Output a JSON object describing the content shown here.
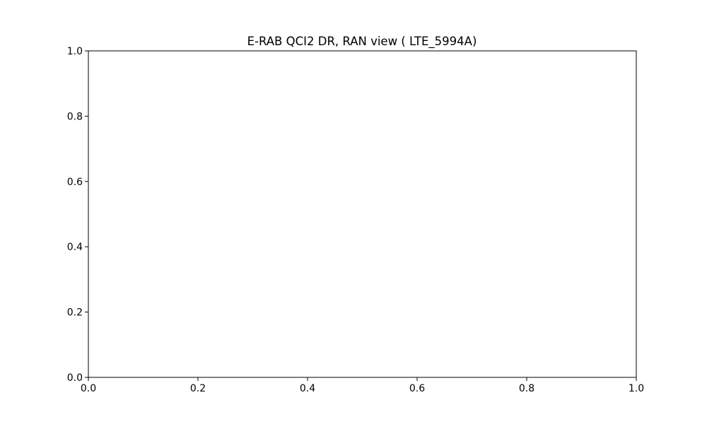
{
  "chart_data": {
    "type": "line",
    "title": "E-RAB QCI2 DR, RAN view ( LTE_5994A)",
    "xlabel": "",
    "ylabel": "",
    "xlim": [
      0.0,
      1.0
    ],
    "ylim": [
      0.0,
      1.0
    ],
    "x_ticks": [
      0.0,
      0.2,
      0.4,
      0.6,
      0.8,
      1.0
    ],
    "y_ticks": [
      0.0,
      0.2,
      0.4,
      0.6,
      0.8,
      1.0
    ],
    "x_tick_labels": [
      "0.0",
      "0.2",
      "0.4",
      "0.6",
      "0.8",
      "1.0"
    ],
    "y_tick_labels": [
      "0.0",
      "0.2",
      "0.4",
      "0.6",
      "0.8",
      "1.0"
    ],
    "grid": false,
    "legend": "none",
    "series": []
  },
  "colors": {
    "axes": "#000000",
    "background": "#ffffff"
  }
}
